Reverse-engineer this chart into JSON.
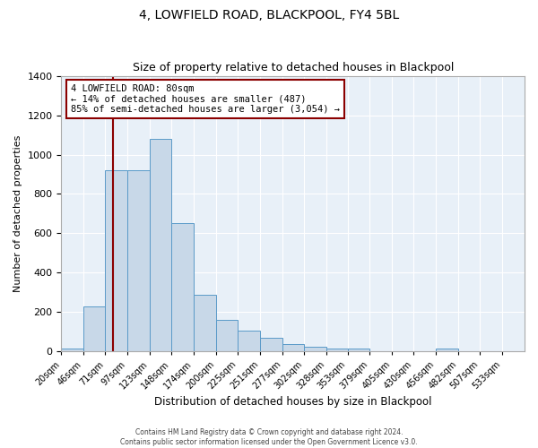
{
  "title": "4, LOWFIELD ROAD, BLACKPOOL, FY4 5BL",
  "subtitle": "Size of property relative to detached houses in Blackpool",
  "xlabel": "Distribution of detached houses by size in Blackpool",
  "ylabel": "Number of detached properties",
  "bar_color": "#c8d8e8",
  "bar_edge_color": "#5a9ac8",
  "background_color": "#e8f0f8",
  "bin_labels": [
    "20sqm",
    "46sqm",
    "71sqm",
    "97sqm",
    "123sqm",
    "148sqm",
    "174sqm",
    "200sqm",
    "225sqm",
    "251sqm",
    "277sqm",
    "302sqm",
    "328sqm",
    "353sqm",
    "379sqm",
    "405sqm",
    "430sqm",
    "456sqm",
    "482sqm",
    "507sqm",
    "533sqm"
  ],
  "bar_values": [
    15,
    230,
    920,
    920,
    1080,
    650,
    290,
    160,
    105,
    70,
    38,
    25,
    17,
    17,
    0,
    0,
    0,
    15,
    0,
    0,
    0
  ],
  "bin_edges": [
    20,
    46,
    71,
    97,
    123,
    148,
    174,
    200,
    225,
    251,
    277,
    302,
    328,
    353,
    379,
    405,
    430,
    456,
    482,
    507,
    533,
    559
  ],
  "vline_x": 80,
  "ylim": [
    0,
    1400
  ],
  "yticks": [
    0,
    200,
    400,
    600,
    800,
    1000,
    1200,
    1400
  ],
  "annotation_line1": "4 LOWFIELD ROAD: 80sqm",
  "annotation_line2": "← 14% of detached houses are smaller (487)",
  "annotation_line3": "85% of semi-detached houses are larger (3,054) →",
  "footer_line1": "Contains HM Land Registry data © Crown copyright and database right 2024.",
  "footer_line2": "Contains public sector information licensed under the Open Government Licence v3.0."
}
